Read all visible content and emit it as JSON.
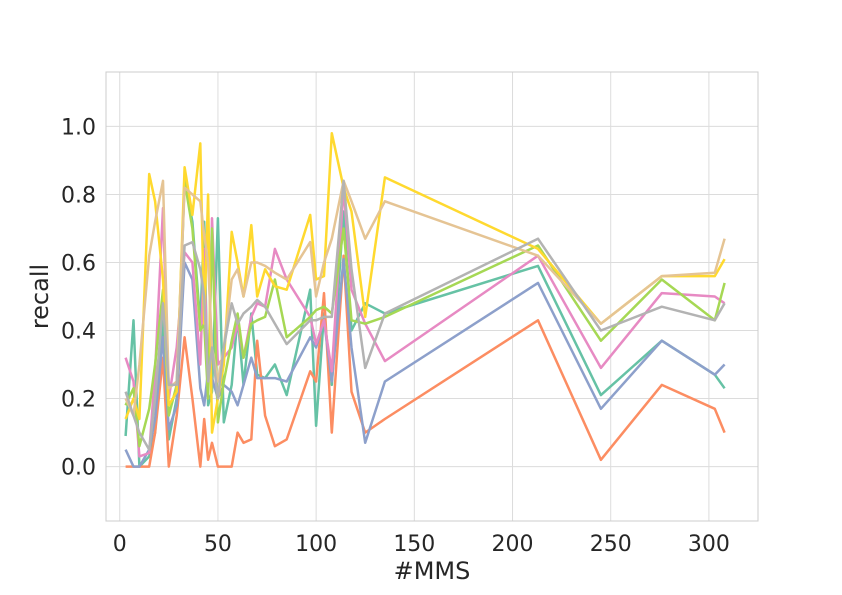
{
  "chart_data": {
    "type": "line",
    "title": "",
    "xlabel": "#MMS",
    "ylabel": "recall",
    "xlim": [
      -7,
      325
    ],
    "ylim": [
      -0.16,
      1.16
    ],
    "xticks": [
      0,
      50,
      100,
      150,
      200,
      250,
      300
    ],
    "yticks": [
      0.0,
      0.2,
      0.4,
      0.6,
      0.8,
      1.0
    ],
    "xtick_labels": [
      "0",
      "50",
      "100",
      "150",
      "200",
      "250",
      "300"
    ],
    "ytick_labels": [
      "0.0",
      "0.2",
      "0.4",
      "0.6",
      "0.8",
      "1.0"
    ],
    "grid": true,
    "legend": false,
    "colors": [
      "#66c2a5",
      "#fc8d62",
      "#8da0cb",
      "#e78ac3",
      "#a6d854",
      "#ffd92f",
      "#e5c494",
      "#b3b3b3"
    ],
    "x": [
      3,
      7,
      10,
      15,
      18,
      22,
      25,
      29,
      33,
      37,
      41,
      43,
      45,
      47,
      50,
      53,
      57,
      60,
      63,
      67,
      70,
      74,
      79,
      85,
      97,
      100,
      104,
      108,
      114,
      118,
      125,
      135,
      213,
      245,
      276,
      303,
      308
    ],
    "series": [
      {
        "values": [
          0.09,
          0.43,
          0.0,
          0.03,
          0.1,
          0.43,
          0.08,
          0.2,
          0.84,
          0.72,
          0.42,
          0.72,
          0.18,
          0.22,
          0.73,
          0.13,
          0.24,
          0.44,
          0.24,
          0.45,
          0.27,
          0.26,
          0.3,
          0.21,
          0.52,
          0.12,
          0.45,
          0.24,
          0.75,
          0.4,
          0.48,
          0.45,
          0.59,
          0.21,
          0.37,
          0.27,
          0.23
        ]
      },
      {
        "values": [
          0.0,
          0.0,
          0.0,
          0.0,
          0.1,
          0.32,
          0.0,
          0.15,
          0.38,
          0.2,
          0.0,
          0.14,
          0.02,
          0.07,
          0.0,
          0.0,
          0.0,
          0.1,
          0.07,
          0.08,
          0.37,
          0.15,
          0.06,
          0.08,
          0.28,
          0.25,
          0.51,
          0.1,
          0.62,
          0.22,
          0.1,
          0.14,
          0.43,
          0.02,
          0.24,
          0.17,
          0.1
        ]
      },
      {
        "values": [
          0.05,
          0.0,
          0.0,
          0.05,
          0.14,
          0.38,
          0.11,
          0.18,
          0.6,
          0.55,
          0.23,
          0.18,
          0.28,
          0.26,
          0.2,
          0.24,
          0.22,
          0.18,
          0.24,
          0.32,
          0.26,
          0.26,
          0.26,
          0.25,
          0.38,
          0.35,
          0.43,
          0.25,
          0.61,
          0.35,
          0.07,
          0.25,
          0.54,
          0.17,
          0.37,
          0.27,
          0.3
        ]
      },
      {
        "values": [
          0.32,
          0.25,
          0.03,
          0.04,
          0.28,
          0.76,
          0.2,
          0.35,
          0.63,
          0.6,
          0.3,
          0.64,
          0.2,
          0.73,
          0.3,
          0.32,
          0.35,
          0.42,
          0.32,
          0.44,
          0.48,
          0.47,
          0.64,
          0.55,
          0.44,
          0.36,
          0.43,
          0.28,
          0.82,
          0.52,
          0.42,
          0.31,
          0.62,
          0.29,
          0.51,
          0.5,
          0.48
        ]
      },
      {
        "values": [
          0.18,
          0.23,
          0.06,
          0.17,
          0.3,
          0.52,
          0.15,
          0.24,
          0.84,
          0.7,
          0.4,
          0.42,
          0.2,
          0.7,
          0.13,
          0.25,
          0.37,
          0.45,
          0.32,
          0.42,
          0.43,
          0.44,
          0.55,
          0.38,
          0.44,
          0.46,
          0.47,
          0.45,
          0.7,
          0.43,
          0.42,
          0.44,
          0.65,
          0.37,
          0.55,
          0.43,
          0.54
        ]
      },
      {
        "values": [
          0.14,
          0.2,
          0.14,
          0.86,
          0.78,
          0.55,
          0.18,
          0.22,
          0.88,
          0.74,
          0.95,
          0.42,
          0.8,
          0.1,
          0.2,
          0.3,
          0.69,
          0.6,
          0.5,
          0.71,
          0.5,
          0.58,
          0.53,
          0.52,
          0.74,
          0.55,
          0.56,
          0.98,
          0.82,
          0.75,
          0.44,
          0.85,
          0.64,
          0.42,
          0.56,
          0.56,
          0.61
        ]
      },
      {
        "values": [
          0.2,
          0.15,
          0.3,
          0.62,
          0.72,
          0.84,
          0.23,
          0.25,
          0.82,
          0.8,
          0.78,
          0.68,
          0.6,
          0.35,
          0.25,
          0.35,
          0.55,
          0.58,
          0.5,
          0.6,
          0.6,
          0.59,
          0.57,
          0.55,
          0.66,
          0.5,
          0.6,
          0.67,
          0.84,
          0.78,
          0.67,
          0.78,
          0.62,
          0.42,
          0.56,
          0.57,
          0.67
        ]
      },
      {
        "values": [
          0.22,
          0.15,
          0.1,
          0.05,
          0.2,
          0.48,
          0.24,
          0.24,
          0.65,
          0.66,
          0.58,
          0.5,
          0.25,
          0.35,
          0.2,
          0.35,
          0.48,
          0.42,
          0.45,
          0.47,
          0.49,
          0.47,
          0.42,
          0.36,
          0.43,
          0.43,
          0.44,
          0.44,
          0.84,
          0.58,
          0.29,
          0.45,
          0.67,
          0.4,
          0.47,
          0.43,
          0.48
        ]
      }
    ]
  }
}
